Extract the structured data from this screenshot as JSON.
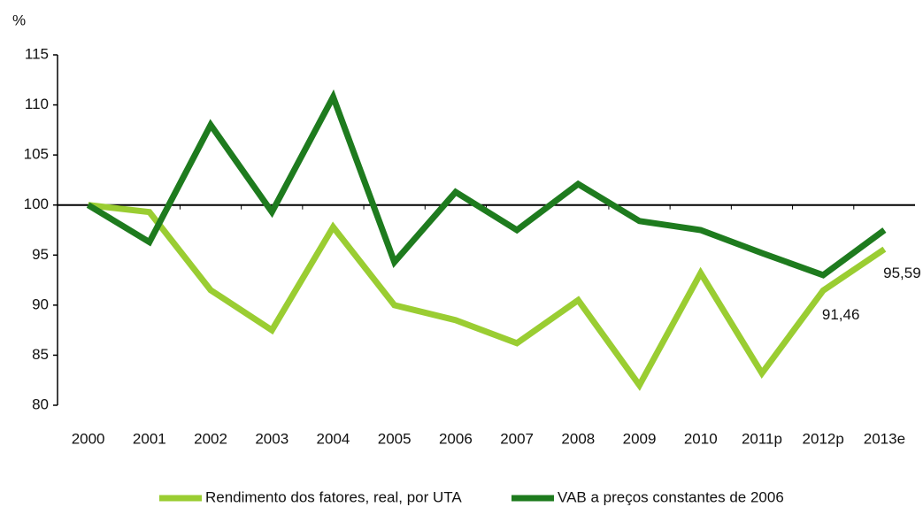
{
  "chart_data": {
    "type": "line",
    "y_label": "%",
    "categories": [
      "2000",
      "2001",
      "2002",
      "2003",
      "2004",
      "2005",
      "2006",
      "2007",
      "2008",
      "2009",
      "2010",
      "2011p",
      "2012p",
      "2013e"
    ],
    "series": [
      {
        "name": "Rendimento dos fatores, real, por UTA",
        "color": "#9acd32",
        "values": [
          100,
          99.3,
          91.5,
          87.5,
          97.8,
          90,
          88.5,
          86.2,
          90.5,
          82,
          93.2,
          83.2,
          91.46,
          95.59
        ],
        "value_labels": [
          null,
          null,
          null,
          null,
          null,
          null,
          null,
          null,
          null,
          null,
          null,
          null,
          "91,46",
          "95,59"
        ]
      },
      {
        "name": "VAB a preços constantes de 2006",
        "color": "#1e7b1e",
        "values": [
          100,
          96.3,
          108,
          99.3,
          110.8,
          94.3,
          101.3,
          97.5,
          102.1,
          98.4,
          97.5,
          95.2,
          93,
          97.5
        ]
      }
    ],
    "ylim": [
      80,
      115
    ],
    "yticks": [
      80,
      85,
      90,
      95,
      100,
      105,
      110,
      115
    ],
    "x_axis_at": 100,
    "legend": "bottom"
  }
}
